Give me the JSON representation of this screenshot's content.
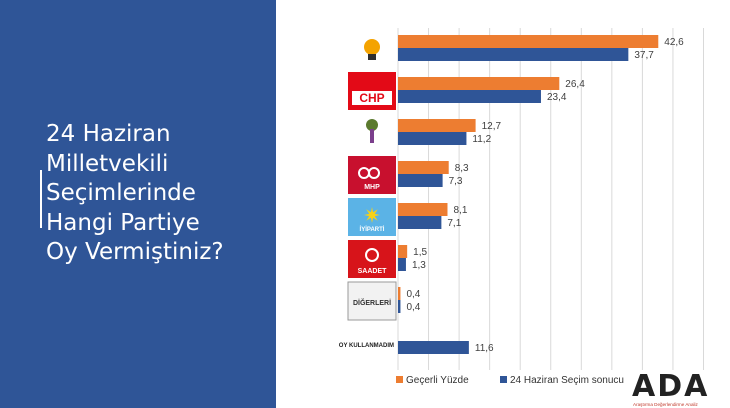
{
  "title_lines": [
    "24 Haziran",
    "Milletvekili",
    "Seçimlerinde",
    "Hangi Partiye",
    "Oy Vermiştiniz?"
  ],
  "colors": {
    "panel": "#2f5597",
    "gecerli": "#ed7d31",
    "sonuc": "#2f5597"
  },
  "categories": [
    {
      "id": "akp",
      "logo_icon": "ak-parti-bulb-icon"
    },
    {
      "id": "chp",
      "logo_icon": "chp-logo-icon",
      "logo_text": "CHP"
    },
    {
      "id": "hdp",
      "logo_icon": "hdp-tree-icon"
    },
    {
      "id": "mhp",
      "logo_icon": "mhp-crescents-icon",
      "logo_text": "MHP"
    },
    {
      "id": "iyi",
      "logo_icon": "iyi-parti-star-icon",
      "logo_text": "İYİPARTİ"
    },
    {
      "id": "saadet",
      "logo_icon": "saadet-logo-icon",
      "logo_text": "SAADET"
    },
    {
      "id": "digerleri",
      "logo_icon": "digerleri-box-icon",
      "logo_text": "DİĞERLERİ"
    },
    {
      "id": "oy_kullanmadim",
      "label": "OY KULLANMADIM"
    }
  ],
  "chart_data": {
    "type": "bar",
    "orientation": "horizontal",
    "categories": [
      "AK Parti",
      "CHP",
      "HDP",
      "MHP",
      "İYİ Parti",
      "Saadet",
      "DİĞERLERİ",
      "OY KULLANMADIM"
    ],
    "series": [
      {
        "name": "Geçerli Yüzde",
        "values": [
          42.6,
          26.4,
          12.7,
          8.3,
          8.1,
          1.5,
          0.4,
          null
        ],
        "labels": [
          "42,6",
          "26,4",
          "12,7",
          "8,3",
          "8,1",
          "1,5",
          "0,4",
          ""
        ]
      },
      {
        "name": "24 Haziran Seçim sonucu",
        "values": [
          37.7,
          23.4,
          11.2,
          7.3,
          7.1,
          1.3,
          0.4,
          11.6
        ],
        "labels": [
          "37,7",
          "23,4",
          "11,2",
          "7,3",
          "7,1",
          "1,3",
          "0,4",
          "11,6"
        ]
      }
    ],
    "xlim": [
      0,
      50
    ],
    "grid": true,
    "legend": "bottom"
  },
  "brand": {
    "letters": "ADA",
    "subtitle": "Araştırma Değerlendirme Analiz"
  }
}
